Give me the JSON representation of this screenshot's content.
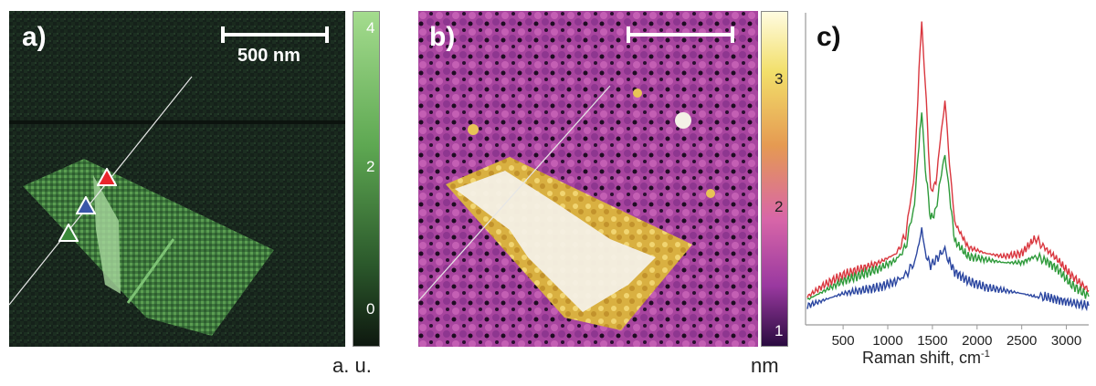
{
  "panels": {
    "a": {
      "label": "a)",
      "scalebar_text": "500 nm",
      "colorbar_ticks": [
        "4",
        "2",
        "0"
      ],
      "unit": "a. u."
    },
    "b": {
      "label": "b)",
      "colorbar_ticks": [
        "3",
        "2",
        "1"
      ],
      "unit": "nm"
    },
    "c": {
      "label": "c)"
    }
  },
  "colors": {
    "red_marker": "#e8242a",
    "blue_marker": "#3a56a8",
    "green_marker": "#3b8a3a"
  },
  "chart_data": {
    "type": "line",
    "title": "",
    "xlabel": "Raman shift, cm",
    "xlabel_sup": "-1",
    "ylabel": "",
    "xlim": [
      100,
      3250
    ],
    "ylim": [
      0,
      1
    ],
    "xticks": [
      500,
      1000,
      1500,
      2000,
      2500,
      3000
    ],
    "series": [
      {
        "color": "#d9363e",
        "x": [
          100,
          300,
          500,
          700,
          900,
          1100,
          1200,
          1300,
          1350,
          1380,
          1420,
          1480,
          1540,
          1600,
          1640,
          1680,
          1750,
          1900,
          2100,
          2300,
          2500,
          2650,
          2750,
          2900,
          3050,
          3250
        ],
        "y": [
          0.08,
          0.12,
          0.15,
          0.17,
          0.19,
          0.22,
          0.28,
          0.48,
          0.82,
          0.97,
          0.78,
          0.42,
          0.45,
          0.62,
          0.72,
          0.55,
          0.32,
          0.24,
          0.22,
          0.21,
          0.22,
          0.27,
          0.24,
          0.2,
          0.15,
          0.1
        ]
      },
      {
        "color": "#2e9a3a",
        "x": [
          100,
          300,
          500,
          700,
          900,
          1100,
          1200,
          1300,
          1350,
          1380,
          1420,
          1480,
          1540,
          1600,
          1640,
          1680,
          1750,
          1900,
          2100,
          2300,
          2500,
          2650,
          2750,
          2900,
          3050,
          3250
        ],
        "y": [
          0.07,
          0.1,
          0.13,
          0.15,
          0.17,
          0.2,
          0.24,
          0.38,
          0.58,
          0.68,
          0.5,
          0.33,
          0.36,
          0.48,
          0.55,
          0.44,
          0.26,
          0.21,
          0.2,
          0.19,
          0.19,
          0.21,
          0.2,
          0.17,
          0.12,
          0.08
        ]
      },
      {
        "color": "#2b46a0",
        "x": [
          100,
          300,
          500,
          700,
          900,
          1100,
          1200,
          1300,
          1350,
          1380,
          1420,
          1480,
          1540,
          1600,
          1640,
          1680,
          1750,
          1900,
          2100,
          2300,
          2500,
          2650,
          2750,
          2900,
          3050,
          3250
        ],
        "y": [
          0.05,
          0.07,
          0.09,
          0.1,
          0.11,
          0.13,
          0.15,
          0.19,
          0.25,
          0.3,
          0.22,
          0.18,
          0.2,
          0.22,
          0.24,
          0.2,
          0.16,
          0.13,
          0.11,
          0.1,
          0.09,
          0.08,
          0.08,
          0.07,
          0.06,
          0.05
        ]
      }
    ]
  }
}
